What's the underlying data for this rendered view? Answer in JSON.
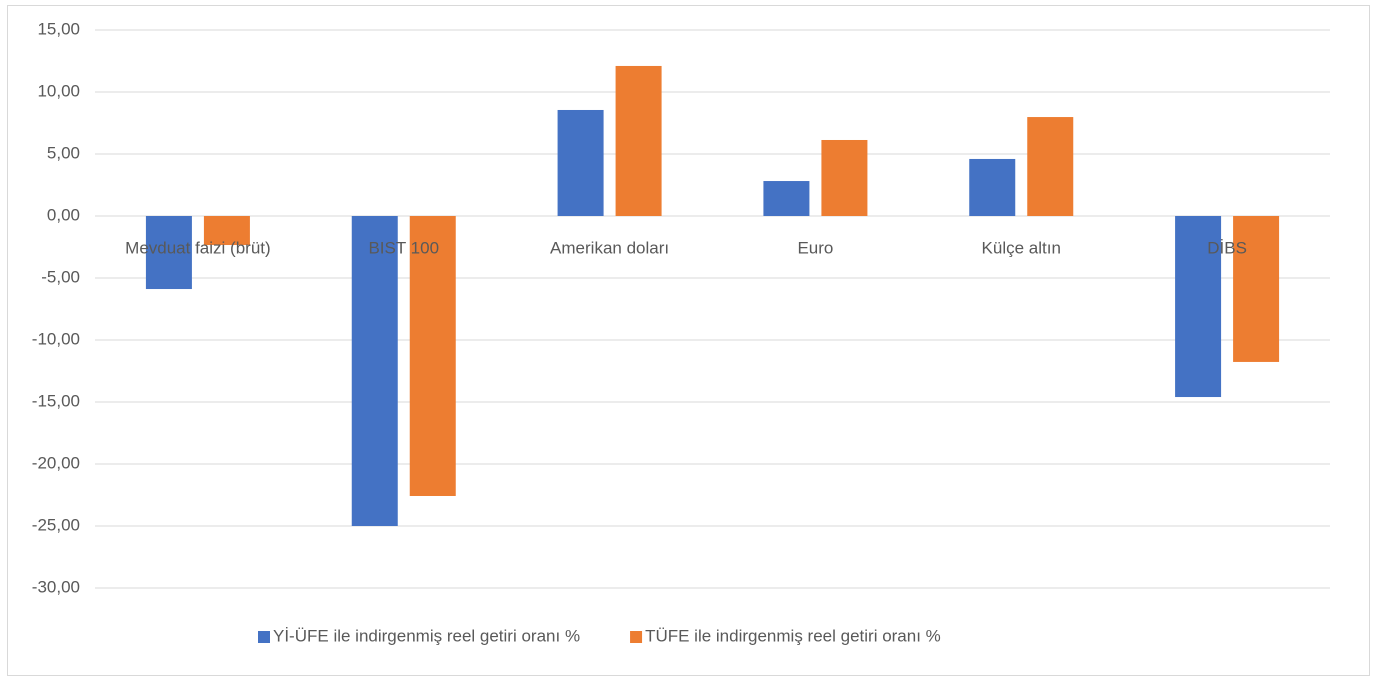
{
  "chart_data": {
    "type": "bar",
    "categories": [
      "Mevduat faizi (brüt)",
      "BIST 100",
      "Amerikan doları",
      "Euro",
      "Külçe altın",
      "DİBS"
    ],
    "series": [
      {
        "name": "Yİ-ÜFE ile indirgenmiş reel getiri oranı %",
        "color": "#4472c4",
        "values": [
          -5.89,
          -25.0,
          8.55,
          2.82,
          4.6,
          -14.6
        ]
      },
      {
        "name": "TÜFE ile indirgenmiş reel getiri oranı %",
        "color": "#ed7d31",
        "values": [
          -2.34,
          -22.58,
          12.1,
          6.13,
          7.98,
          -11.77
        ]
      }
    ],
    "ylim": [
      -30,
      15
    ],
    "yticks": [
      {
        "value": -30,
        "label": "-30,00"
      },
      {
        "value": -25,
        "label": "-25,00"
      },
      {
        "value": -20,
        "label": "-20,00"
      },
      {
        "value": -15,
        "label": "-15,00"
      },
      {
        "value": -10,
        "label": "-10,00"
      },
      {
        "value": -5,
        "label": "-5,00"
      },
      {
        "value": 0,
        "label": "0,00"
      },
      {
        "value": 5,
        "label": "5,00"
      },
      {
        "value": 10,
        "label": "10,00"
      },
      {
        "value": 15,
        "label": "15,00"
      }
    ],
    "grid": true,
    "legend": "bottom"
  }
}
